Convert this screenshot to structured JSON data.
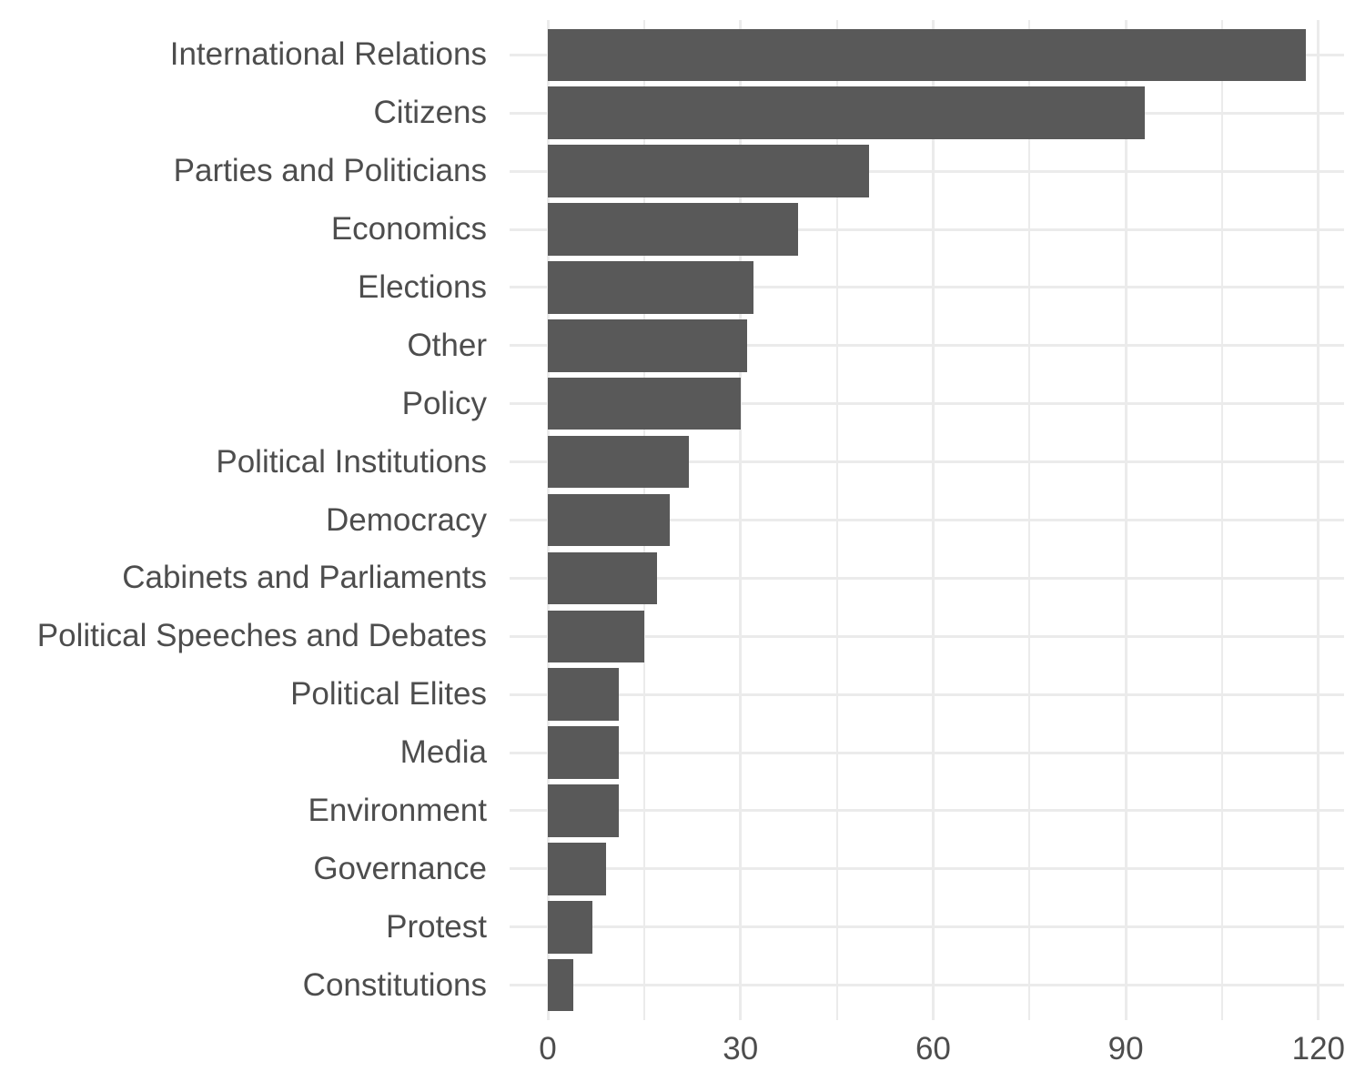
{
  "chart_data": {
    "type": "bar",
    "orientation": "horizontal",
    "title": "",
    "xlabel": "",
    "ylabel": "",
    "categories": [
      "International Relations",
      "Citizens",
      "Parties and Politicians",
      "Economics",
      "Elections",
      "Other",
      "Policy",
      "Political Institutions",
      "Democracy",
      "Cabinets and Parliaments",
      "Political Speeches and Debates",
      "Political Elites",
      "Media",
      "Environment",
      "Governance",
      "Protest",
      "Constitutions"
    ],
    "values": [
      118,
      93,
      50,
      39,
      32,
      31,
      30,
      22,
      19,
      17,
      15,
      11,
      11,
      11,
      9,
      7,
      4
    ],
    "x_axis": {
      "major_ticks": [
        0,
        30,
        60,
        90,
        120
      ],
      "tick_labels": [
        "0",
        "30",
        "60",
        "90",
        "120"
      ],
      "minor_ticks": [
        15,
        45,
        75,
        105
      ],
      "data_range": [
        0,
        118
      ],
      "shown_range_with_expansion": [
        -5.9,
        123.9
      ]
    },
    "legend_position": "none",
    "grid": true,
    "bar_width_fraction": 0.9,
    "style": {
      "bar_color": "#595959",
      "grid_color": "#EBEBEB",
      "text_color": "#4D4D4D",
      "background_color": "#FFFFFF"
    }
  }
}
